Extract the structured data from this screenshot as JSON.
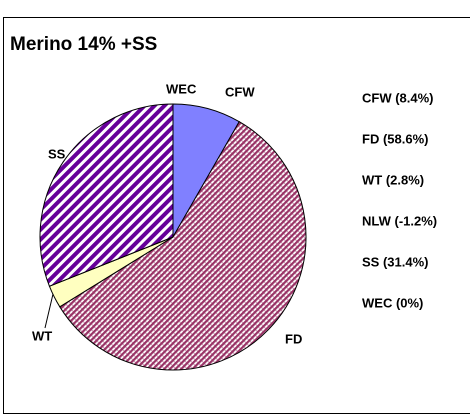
{
  "chart_data": {
    "type": "pie",
    "title": "Merino 14% +SS",
    "categories": [
      "CFW",
      "FD",
      "WT",
      null,
      "SS",
      "WEC"
    ],
    "values": [
      8.4,
      58.6,
      2.8,
      -1.2,
      31.4,
      0
    ],
    "legend_labels": [
      "CFW (8.4%)",
      "FD (58.6%)",
      "WT (2.8%)",
      "NLW (-1.2%)",
      "SS (31.4%)",
      "WEC (0%)"
    ],
    "colors": [
      "#8080ff",
      "#993366",
      "#ffffc0",
      "#ffffff",
      "#660099",
      "#ffffff"
    ]
  }
}
